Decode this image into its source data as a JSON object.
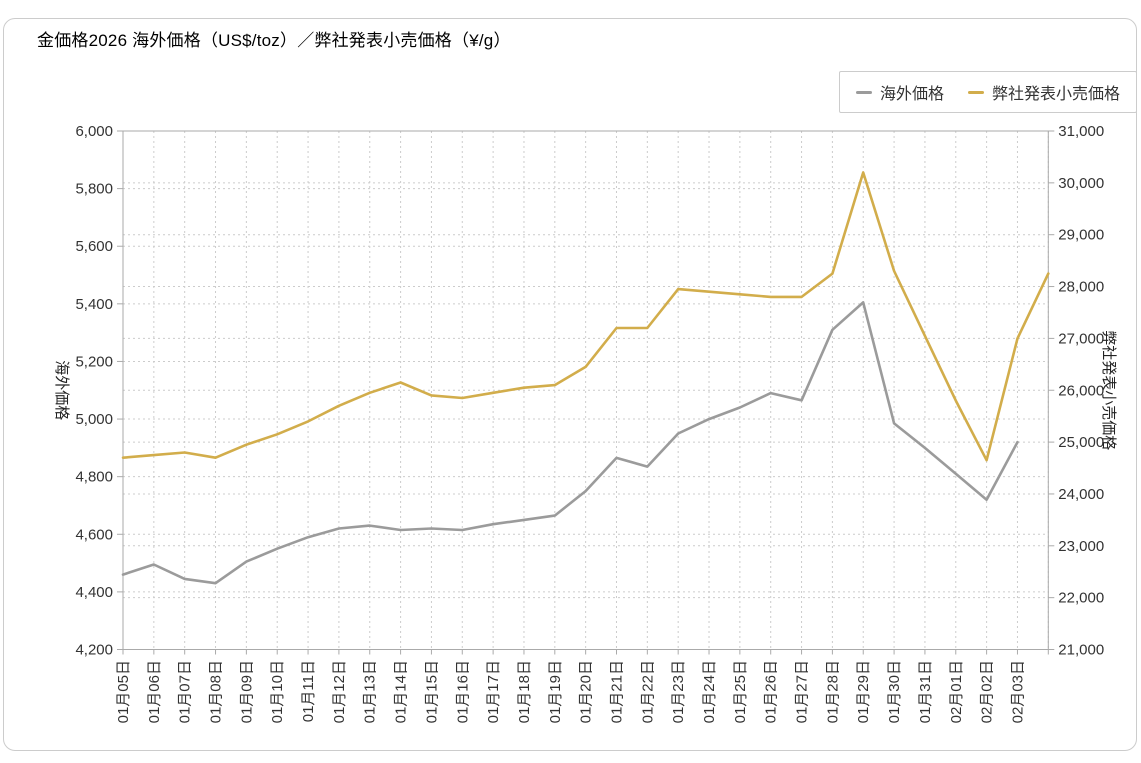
{
  "title": "金価格2026 海外価格（US$/toz）／弊社発表小売価格（¥/g）",
  "legend": {
    "position": "top-right",
    "items": [
      {
        "label": "海外価格",
        "color": "#9b9b9b"
      },
      {
        "label": "弊社発表小売価格",
        "color": "#d2ad4b"
      }
    ]
  },
  "chart_data": {
    "type": "line",
    "title": "金価格2026 海外価格（US$/toz）／弊社発表小売価格（¥/g）",
    "grid": "dotted",
    "legend_position": "top-right",
    "x_labels": [
      "01月05日",
      "01月06日",
      "01月07日",
      "01月08日",
      "01月09日",
      "01月10日",
      "01月11日",
      "01月12日",
      "01月13日",
      "01月14日",
      "01月15日",
      "01月16日",
      "01月17日",
      "01月18日",
      "01月19日",
      "01月20日",
      "01月21日",
      "01月22日",
      "01月23日",
      "01月24日",
      "01月25日",
      "01月26日",
      "01月27日",
      "01月28日",
      "01月29日",
      "01月30日",
      "01月31日",
      "02月01日",
      "02月02日",
      "02月03日"
    ],
    "extra_unlabeled_slot": true,
    "left_axis": {
      "name": "海外価格",
      "min": 4200,
      "max": 6000,
      "step": 200,
      "tick_labels": [
        "4,200",
        "4,400",
        "4,600",
        "4,800",
        "5,000",
        "5,200",
        "5,400",
        "5,600",
        "5,800",
        "6,000"
      ]
    },
    "right_axis": {
      "name": "弊社発表小売価格",
      "min": 21000,
      "max": 31000,
      "step": 1000,
      "tick_labels": [
        "21,000",
        "22,000",
        "23,000",
        "24,000",
        "25,000",
        "26,000",
        "27,000",
        "28,000",
        "29,000",
        "30,000",
        "31,000"
      ]
    },
    "series": [
      {
        "name": "海外価格",
        "axis": "left",
        "color": "#9b9b9b",
        "values": [
          4460,
          4495,
          4445,
          4430,
          4505,
          4550,
          4590,
          4620,
          4630,
          4615,
          4620,
          4615,
          4635,
          4650,
          4665,
          4750,
          4865,
          4835,
          4950,
          5000,
          5040,
          5090,
          5065,
          5310,
          5405,
          4985,
          4900,
          4810,
          4720,
          4920
        ]
      },
      {
        "name": "弊社発表小売価格",
        "axis": "right",
        "color": "#d2ad4b",
        "values": [
          24700,
          24750,
          24800,
          24700,
          24950,
          25150,
          25400,
          25700,
          25950,
          26150,
          25900,
          25850,
          25950,
          26050,
          26100,
          26450,
          27200,
          27200,
          27950,
          27900,
          27850,
          27800,
          27800,
          28250,
          30200,
          28300,
          27050,
          25800,
          24650,
          27000,
          28250
        ]
      }
    ]
  },
  "colors": {
    "grid": "#cccccc",
    "plot_border": "#aaaaaa",
    "tick": "#aaaaaa",
    "text": "#333333",
    "card_border": "#cccccc",
    "background": "#ffffff"
  }
}
